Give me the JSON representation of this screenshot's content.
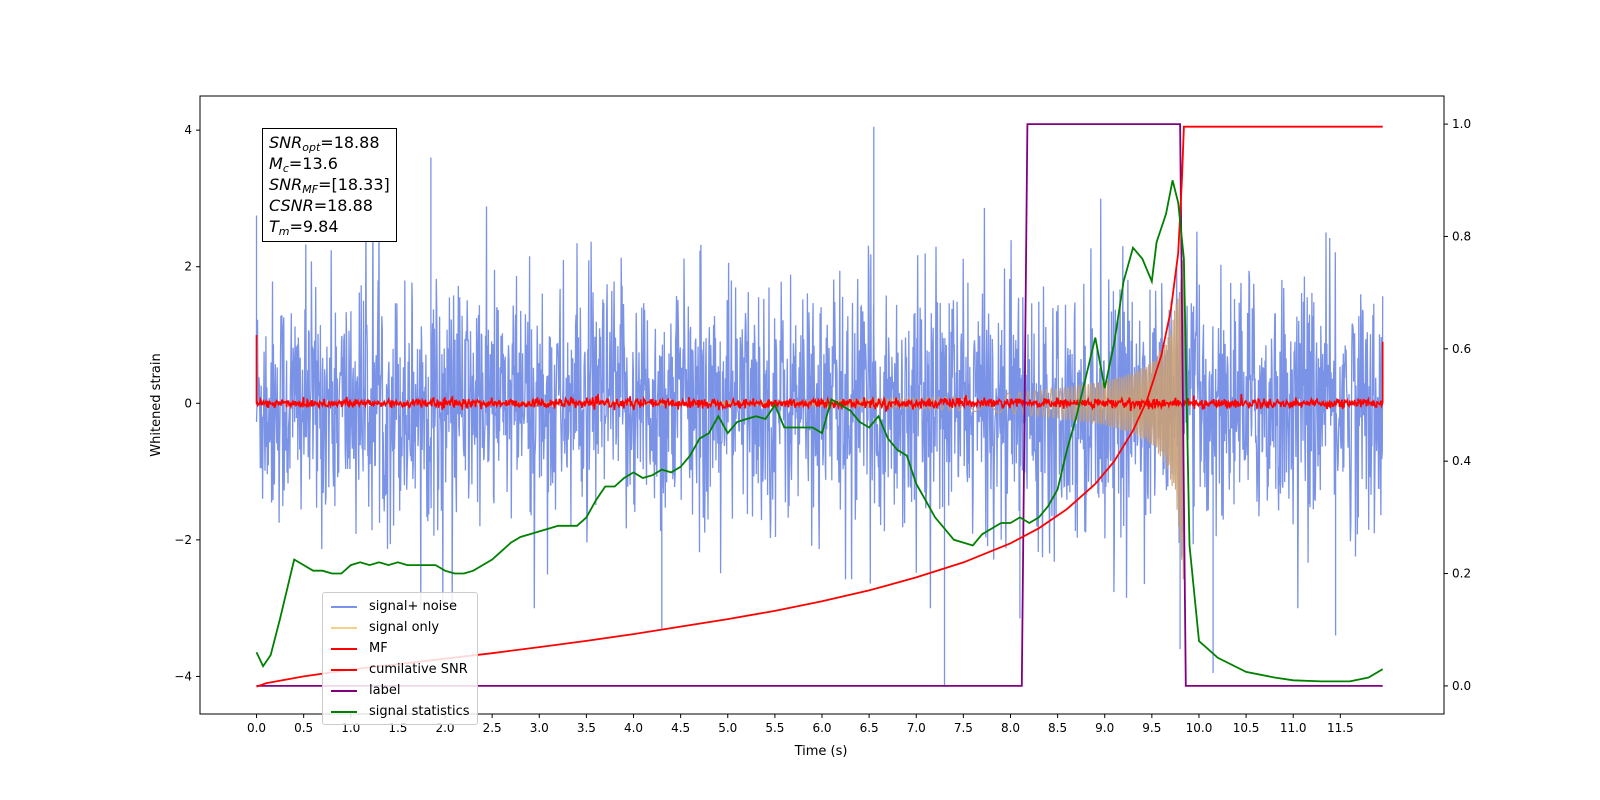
{
  "chart_data": {
    "type": "line",
    "xlabel": "Time (s)",
    "ylabel": "Whitened strain",
    "xlim": [
      -0.6,
      12.6
    ],
    "ylim_left": [
      -4.55,
      4.5
    ],
    "ylim_right": [
      -0.05,
      1.05
    ],
    "x_tick_labels": [
      "0.0",
      "0.5",
      "1.0",
      "1.5",
      "2.0",
      "2.5",
      "3.0",
      "3.5",
      "4.0",
      "4.5",
      "5.0",
      "5.5",
      "6.0",
      "6.5",
      "7.0",
      "7.5",
      "8.0",
      "8.5",
      "9.0",
      "9.5",
      "10.0",
      "10.5",
      "11.0",
      "11.5"
    ],
    "x_ticks": [
      0.0,
      0.5,
      1.0,
      1.5,
      2.0,
      2.5,
      3.0,
      3.5,
      4.0,
      4.5,
      5.0,
      5.5,
      6.0,
      6.5,
      7.0,
      7.5,
      8.0,
      8.5,
      9.0,
      9.5,
      10.0,
      10.5,
      11.0,
      11.5
    ],
    "left_y_ticks": [
      -4,
      -2,
      0,
      2,
      4
    ],
    "left_y_tick_labels": [
      "−4",
      "−2",
      "0",
      "2",
      "4"
    ],
    "right_y_ticks": [
      0.0,
      0.2,
      0.4,
      0.6,
      0.8,
      1.0
    ],
    "right_y_tick_labels": [
      "0.0",
      "0.2",
      "0.4",
      "0.6",
      "0.8",
      "1.0"
    ],
    "annotation": {
      "snr_opt": "18.88",
      "mc": "13.6",
      "snr_mf": "[18.33]",
      "csnr": "18.88",
      "tm": "9.84"
    },
    "legend": [
      {
        "name": "signal+ noise",
        "color": "#7b93e6"
      },
      {
        "name": "signal only",
        "color": "#f7d08a"
      },
      {
        "name": "MF",
        "color": "#ff0000"
      },
      {
        "name": "cumilative SNR",
        "color": "#ff0000"
      },
      {
        "name": "label",
        "color": "#800080"
      },
      {
        "name": "signal statistics",
        "color": "#008000"
      }
    ],
    "series": [
      {
        "name": "label",
        "axis": "right",
        "color": "#800080",
        "x": [
          0.0,
          8.12,
          8.18,
          9.8,
          9.86,
          11.95
        ],
        "y": [
          0.0,
          0.0,
          1.0,
          1.0,
          0.0,
          0.0
        ]
      },
      {
        "name": "cumilative SNR",
        "axis": "left",
        "color": "#ff0000",
        "x": [
          0.0,
          0.1,
          0.5,
          1.0,
          1.5,
          2.0,
          2.5,
          3.0,
          3.5,
          4.0,
          4.5,
          5.0,
          5.5,
          6.0,
          6.5,
          7.0,
          7.5,
          8.0,
          8.3,
          8.6,
          8.9,
          9.1,
          9.3,
          9.45,
          9.6,
          9.7,
          9.78,
          9.82,
          9.84,
          10.0,
          11.0,
          11.95
        ],
        "y": [
          -4.15,
          -4.1,
          -4.0,
          -3.9,
          -3.82,
          -3.74,
          -3.66,
          -3.57,
          -3.48,
          -3.38,
          -3.27,
          -3.16,
          -3.04,
          -2.9,
          -2.74,
          -2.55,
          -2.33,
          -2.05,
          -1.83,
          -1.55,
          -1.18,
          -0.85,
          -0.4,
          0.05,
          0.7,
          1.35,
          2.2,
          3.3,
          4.05,
          4.05,
          4.05,
          4.05
        ]
      },
      {
        "name": "signal statistics",
        "axis": "right",
        "color": "#008000",
        "x": [
          0.0,
          0.07,
          0.15,
          0.25,
          0.4,
          0.5,
          0.6,
          0.7,
          0.8,
          0.9,
          1.0,
          1.1,
          1.2,
          1.3,
          1.4,
          1.5,
          1.6,
          1.7,
          1.8,
          1.9,
          2.0,
          2.1,
          2.2,
          2.3,
          2.4,
          2.5,
          2.6,
          2.7,
          2.8,
          2.9,
          3.0,
          3.1,
          3.2,
          3.3,
          3.4,
          3.5,
          3.6,
          3.7,
          3.8,
          3.9,
          4.0,
          4.1,
          4.2,
          4.3,
          4.4,
          4.5,
          4.6,
          4.7,
          4.8,
          4.9,
          5.0,
          5.1,
          5.2,
          5.3,
          5.4,
          5.5,
          5.6,
          5.7,
          5.8,
          5.9,
          6.0,
          6.1,
          6.2,
          6.3,
          6.4,
          6.5,
          6.6,
          6.7,
          6.8,
          6.9,
          7.0,
          7.1,
          7.2,
          7.3,
          7.4,
          7.5,
          7.6,
          7.7,
          7.8,
          7.9,
          8.0,
          8.1,
          8.2,
          8.3,
          8.4,
          8.5,
          8.6,
          8.7,
          8.8,
          8.9,
          9.0,
          9.1,
          9.2,
          9.3,
          9.4,
          9.5,
          9.55,
          9.65,
          9.72,
          9.78,
          9.84,
          9.9,
          10.0,
          10.2,
          10.5,
          10.8,
          11.0,
          11.3,
          11.6,
          11.8,
          11.95
        ],
        "y": [
          0.06,
          0.035,
          0.055,
          0.12,
          0.225,
          0.215,
          0.205,
          0.205,
          0.2,
          0.2,
          0.215,
          0.22,
          0.215,
          0.22,
          0.215,
          0.22,
          0.215,
          0.215,
          0.215,
          0.215,
          0.205,
          0.2,
          0.2,
          0.205,
          0.215,
          0.225,
          0.24,
          0.255,
          0.265,
          0.27,
          0.275,
          0.28,
          0.285,
          0.285,
          0.285,
          0.3,
          0.33,
          0.355,
          0.355,
          0.37,
          0.38,
          0.37,
          0.375,
          0.385,
          0.38,
          0.39,
          0.41,
          0.44,
          0.45,
          0.48,
          0.45,
          0.47,
          0.475,
          0.48,
          0.475,
          0.5,
          0.46,
          0.46,
          0.46,
          0.46,
          0.45,
          0.51,
          0.5,
          0.49,
          0.47,
          0.46,
          0.48,
          0.44,
          0.42,
          0.41,
          0.36,
          0.33,
          0.3,
          0.28,
          0.26,
          0.255,
          0.25,
          0.27,
          0.28,
          0.29,
          0.29,
          0.3,
          0.29,
          0.3,
          0.32,
          0.35,
          0.42,
          0.48,
          0.55,
          0.62,
          0.53,
          0.61,
          0.72,
          0.78,
          0.76,
          0.72,
          0.79,
          0.84,
          0.9,
          0.86,
          0.76,
          0.25,
          0.08,
          0.05,
          0.025,
          0.015,
          0.01,
          0.008,
          0.008,
          0.015,
          0.03
        ]
      }
    ],
    "noise_envelope": {
      "axis": "left",
      "color": "#7b93e6",
      "x": [
        0.0,
        11.95
      ],
      "typical_amplitude": 1.6,
      "max_excursions": [
        [
          0.0,
          2.75
        ],
        [
          1.85,
          3.6
        ],
        [
          4.3,
          -3.3
        ],
        [
          6.55,
          4.05
        ],
        [
          7.3,
          -4.15
        ],
        [
          8.1,
          -3.15
        ],
        [
          9.8,
          -3.6
        ],
        [
          10.15,
          -3.95
        ],
        [
          11.45,
          -3.4
        ]
      ]
    },
    "signal_only": {
      "axis": "left",
      "color": "#c8a078",
      "x": [
        5.5,
        6.0,
        6.5,
        7.0,
        7.5,
        8.0,
        8.5,
        9.0,
        9.3,
        9.5,
        9.65,
        9.75,
        9.8,
        9.84
      ],
      "amplitude": [
        0.02,
        0.04,
        0.06,
        0.08,
        0.11,
        0.15,
        0.22,
        0.32,
        0.45,
        0.62,
        0.9,
        1.4,
        2.0,
        2.7
      ]
    },
    "mf_noise": {
      "axis": "left",
      "color": "#ff0000",
      "amplitude": 0.08,
      "edge_spikes": [
        [
          0.0,
          1.0
        ],
        [
          11.95,
          0.9
        ]
      ]
    }
  }
}
